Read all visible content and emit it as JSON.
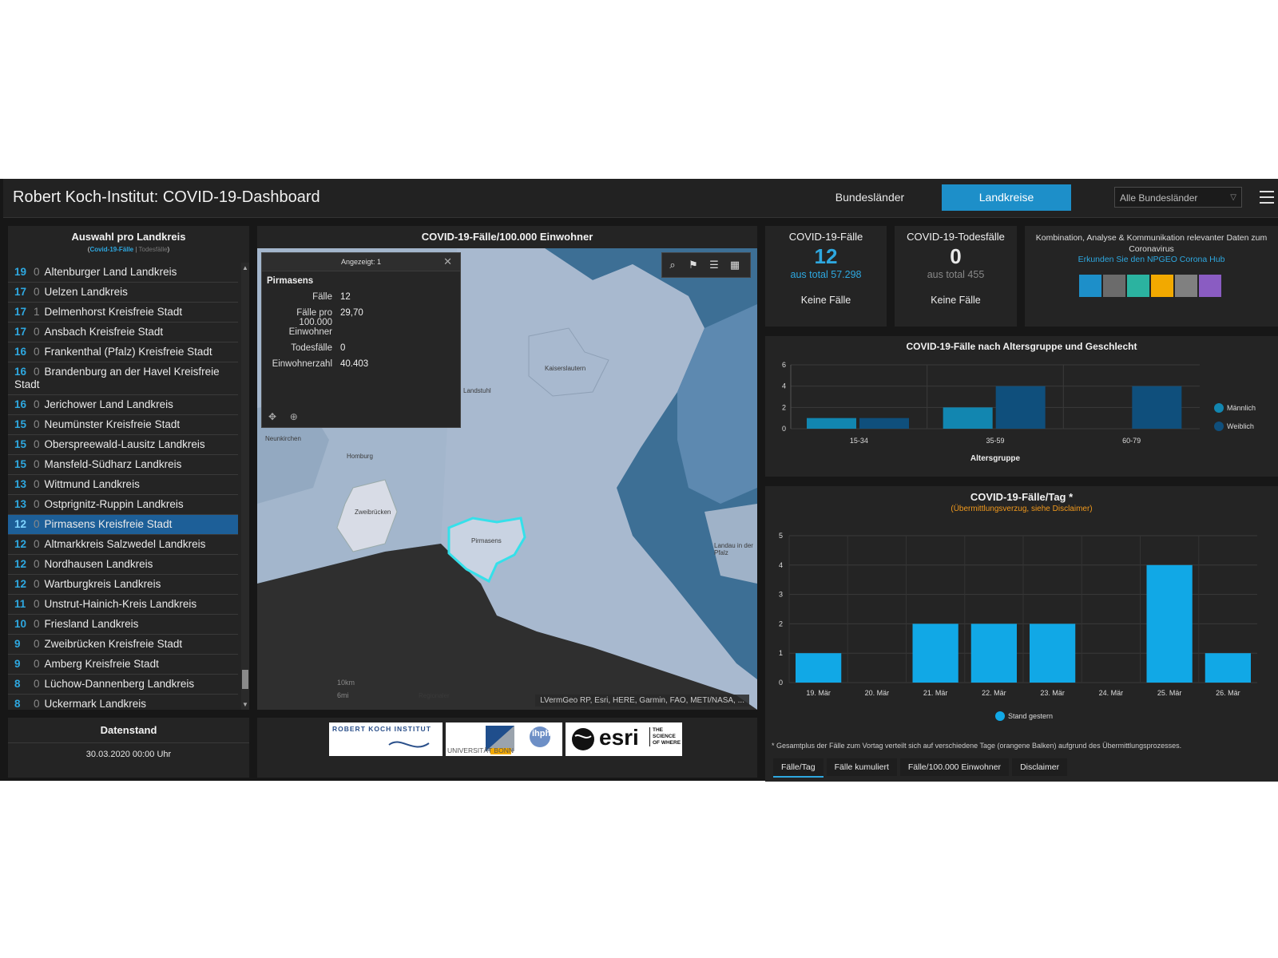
{
  "header": {
    "title": "Robert Koch-Institut: COVID-19-Dashboard",
    "nav": [
      "Bundesländer",
      "Landkreise"
    ],
    "dropdown_value": "Alle Bundesländer"
  },
  "list_panel": {
    "title": "Auswahl pro Landkreis",
    "legend_cases": "Covid-19-Fälle",
    "legend_sep": "|",
    "legend_deaths": "Todesfälle",
    "rows": [
      {
        "cases": "19",
        "deaths": "0",
        "name": "Altenburger Land Landkreis"
      },
      {
        "cases": "17",
        "deaths": "0",
        "name": "Uelzen Landkreis"
      },
      {
        "cases": "17",
        "deaths": "1",
        "name": "Delmenhorst Kreisfreie Stadt"
      },
      {
        "cases": "17",
        "deaths": "0",
        "name": "Ansbach Kreisfreie Stadt"
      },
      {
        "cases": "16",
        "deaths": "0",
        "name": "Frankenthal (Pfalz) Kreisfreie Stadt"
      },
      {
        "cases": "16",
        "deaths": "0",
        "name": "Brandenburg an der Havel Kreisfreie Stadt"
      },
      {
        "cases": "16",
        "deaths": "0",
        "name": "Jerichower Land Landkreis"
      },
      {
        "cases": "15",
        "deaths": "0",
        "name": "Neumünster Kreisfreie Stadt"
      },
      {
        "cases": "15",
        "deaths": "0",
        "name": "Oberspreewald-Lausitz Landkreis"
      },
      {
        "cases": "15",
        "deaths": "0",
        "name": "Mansfeld-Südharz Landkreis"
      },
      {
        "cases": "13",
        "deaths": "0",
        "name": "Wittmund Landkreis"
      },
      {
        "cases": "13",
        "deaths": "0",
        "name": "Ostprignitz-Ruppin Landkreis"
      },
      {
        "cases": "12",
        "deaths": "0",
        "name": "Pirmasens Kreisfreie Stadt"
      },
      {
        "cases": "12",
        "deaths": "0",
        "name": "Altmarkkreis Salzwedel Landkreis"
      },
      {
        "cases": "12",
        "deaths": "0",
        "name": "Nordhausen Landkreis"
      },
      {
        "cases": "12",
        "deaths": "0",
        "name": "Wartburgkreis Landkreis"
      },
      {
        "cases": "11",
        "deaths": "0",
        "name": "Unstrut-Hainich-Kreis Landkreis"
      },
      {
        "cases": "10",
        "deaths": "0",
        "name": "Friesland Landkreis"
      },
      {
        "cases": "9",
        "deaths": "0",
        "name": "Zweibrücken Kreisfreie Stadt"
      },
      {
        "cases": "9",
        "deaths": "0",
        "name": "Amberg Kreisfreie Stadt"
      },
      {
        "cases": "8",
        "deaths": "0",
        "name": "Lüchow-Dannenberg Landkreis"
      },
      {
        "cases": "8",
        "deaths": "0",
        "name": "Uckermark Landkreis"
      }
    ]
  },
  "date_panel": {
    "title": "Datenstand",
    "value": "30.03.2020 00:00 Uhr"
  },
  "map_panel": {
    "title": "COVID-19-Fälle/100.000 Einwohner",
    "popup": {
      "header": "Angezeigt: 1",
      "name": "Pirmasens",
      "fields": [
        {
          "k": "Fälle",
          "v": "12"
        },
        {
          "k": "Fälle pro 100.000 Einwohner",
          "v": "29,70"
        },
        {
          "k": "Todesfälle",
          "v": "0"
        },
        {
          "k": "Einwohnerzahl",
          "v": "40.403"
        }
      ]
    },
    "places": [
      "Kaiserslautern",
      "Landstuhl",
      "Neunkirchen",
      "Homburg",
      "Zweibrücken",
      "Pirmasens",
      "Landau in der Pfalz",
      "Regionaler"
    ],
    "scale_km": "10km",
    "scale_mi": "6mi",
    "attribution": "LVermGeo RP, Esri, HERE, Garmin, FAO, METI/NASA, ..."
  },
  "logos": {
    "rki": "ROBERT KOCH INSTITUT",
    "bonn": "UNIVERSITÄT BONN",
    "ihph": "ihph",
    "esri": "esri",
    "esri_tag": "THE SCIENCE OF WHERE"
  },
  "stats": {
    "cases": {
      "title": "COVID-19-Fälle",
      "value": "12",
      "total": "aus total 57.298",
      "note": "Keine Fälle"
    },
    "deaths": {
      "title": "COVID-19-Todesfälle",
      "value": "0",
      "total": "aus total 455",
      "note": "Keine Fälle"
    }
  },
  "info": {
    "text": "Kombination, Analyse & Kommunikation relevanter Daten zum Coronavirus",
    "link": "Erkunden Sie den NPGEO Corona Hub"
  },
  "colors": {
    "accent": "#1d8fc9",
    "male": "#1286b0",
    "female": "#0f4f7c",
    "bar": "#11a8e6",
    "orange": "#f29a1d"
  },
  "chart_data": [
    {
      "type": "bar",
      "title": "COVID-19-Fälle nach Altersgruppe und Geschlecht",
      "xlabel": "Altersgruppe",
      "categories": [
        "15-34",
        "35-59",
        "60-79"
      ],
      "series": [
        {
          "name": "Männlich",
          "values": [
            1,
            2,
            0
          ]
        },
        {
          "name": "Weiblich",
          "values": [
            1,
            4,
            4
          ]
        }
      ],
      "yticks": [
        0,
        2,
        4,
        6
      ],
      "ylim": [
        0,
        6
      ],
      "legend": "right"
    },
    {
      "type": "bar",
      "title": "COVID-19-Fälle/Tag *",
      "subtitle": "(Übermittlungsverzug, siehe Disclaimer)",
      "categories": [
        "19. Mär",
        "20. Mär",
        "21. Mär",
        "22. Mär",
        "23. Mär",
        "24. Mär",
        "25. Mär",
        "26. Mär"
      ],
      "series": [
        {
          "name": "Stand gestern",
          "values": [
            1,
            0,
            2,
            2,
            2,
            0,
            4,
            1
          ]
        }
      ],
      "yticks": [
        0,
        1,
        2,
        3,
        4,
        5
      ],
      "ylim": [
        0,
        5
      ],
      "legend": "bottom",
      "footnote": "* Gesamtplus der Fälle zum Vortag verteilt sich auf verschiedene Tage (orangene Balken) aufgrund des Übermittlungsprozesses."
    }
  ],
  "tabs": [
    "Fälle/Tag",
    "Fälle kumuliert",
    "Fälle/100.000 Einwohner",
    "Disclaimer"
  ]
}
